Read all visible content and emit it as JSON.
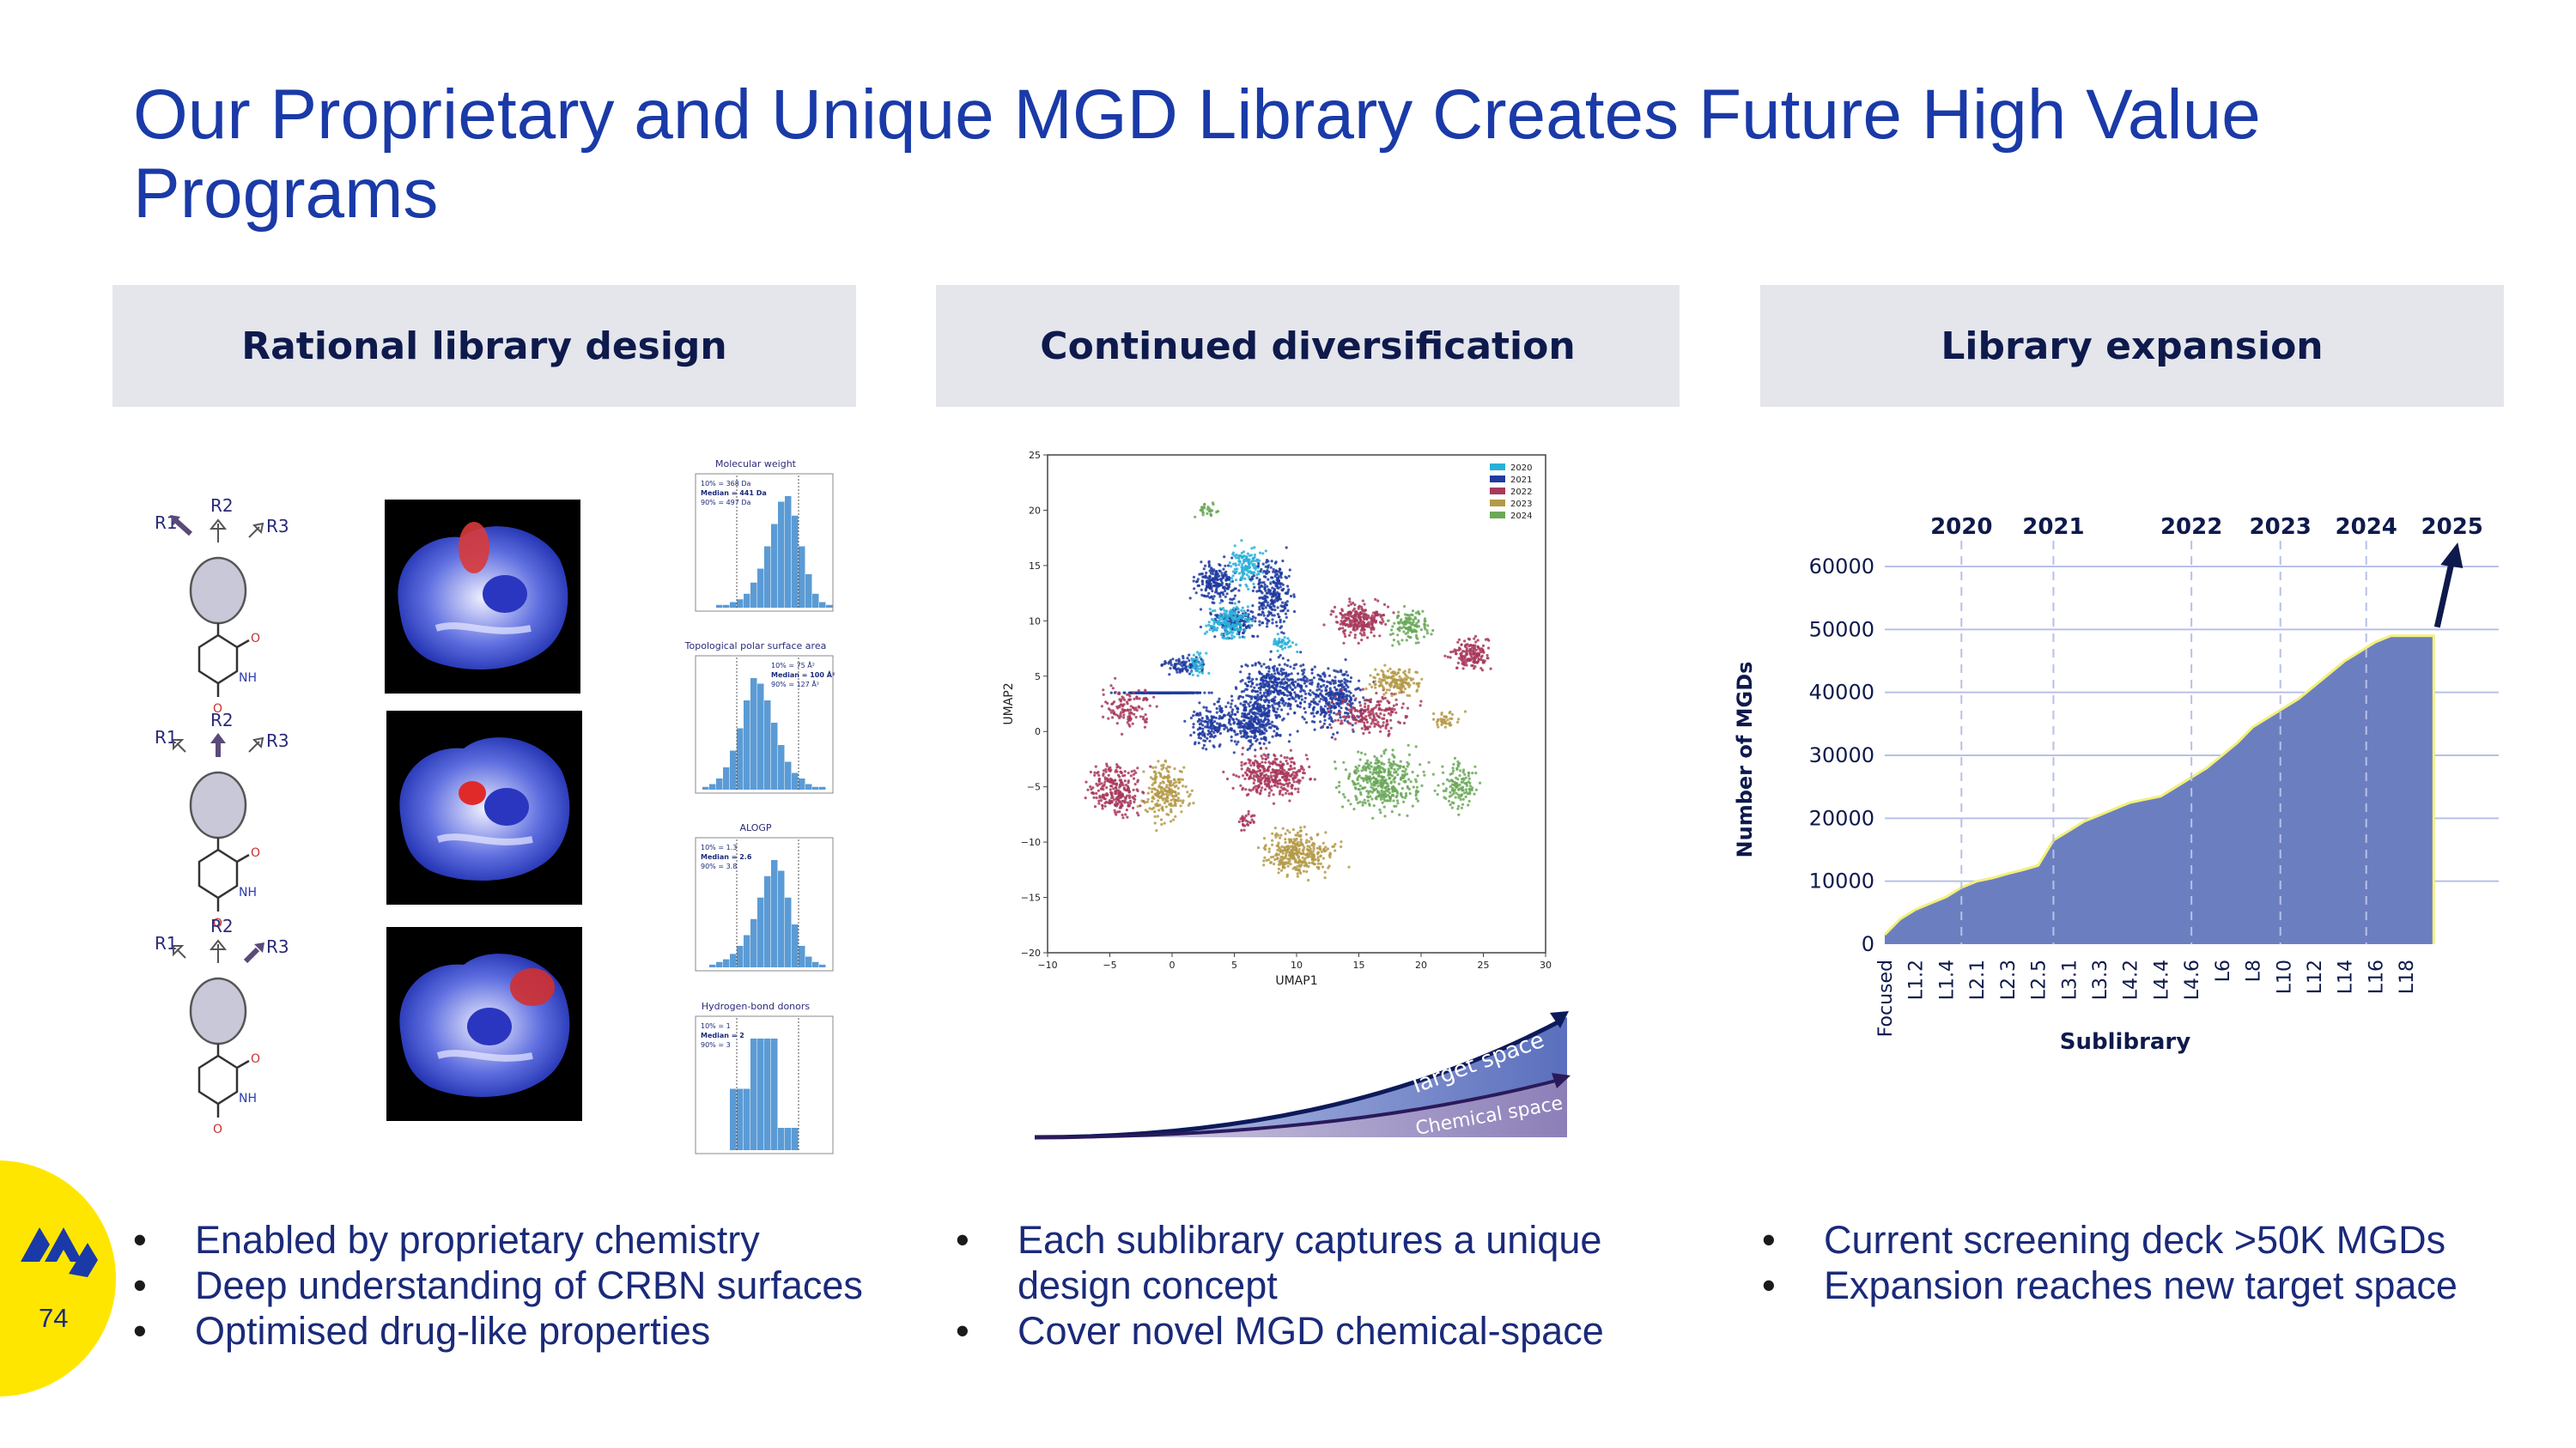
{
  "slide": {
    "title": "Our Proprietary and Unique MGD Library Creates Future High Value Programs",
    "page_number": "74"
  },
  "columns": [
    {
      "heading": "Rational library design",
      "bullets": [
        "Enabled by proprietary chemistry",
        "Deep understanding of CRBN surfaces",
        "Optimised drug-like properties"
      ]
    },
    {
      "heading": "Continued diversification",
      "bullets": [
        "Each sublibrary captures a unique design concept",
        "Cover novel MGD chemical-space"
      ]
    },
    {
      "heading": "Library expansion",
      "bullets": [
        "Current screening deck >50K MGDs",
        "Expansion reaches new target space"
      ]
    }
  ],
  "molecules": {
    "rows": [
      {
        "r1": "R1",
        "r2": "R2",
        "r3": "R3",
        "o1": "O",
        "nh": "NH",
        "o2": "O"
      },
      {
        "r1": "R1",
        "r2": "R2",
        "r3": "R3",
        "o1": "O",
        "nh": "NH",
        "o2": "O"
      },
      {
        "r1": "R1",
        "r2": "R2",
        "r3": "R3",
        "o1": "O",
        "nh": "NH",
        "o2": "O"
      }
    ]
  },
  "histograms": [
    {
      "title": "Molecular weight",
      "stats": [
        "10% = 368 Da",
        "Median = 441 Da",
        "90% = 497 Da"
      ]
    },
    {
      "title": "Topological polar surface area",
      "stats": [
        "10% = 75 Å²",
        "Median = 100 Å²",
        "90% = 127 Å²"
      ]
    },
    {
      "title": "ALOGP",
      "stats": [
        "10% = 1.3",
        "Median = 2.6",
        "90% = 3.8"
      ]
    },
    {
      "title": "Hydrogen-bond donors",
      "stats": [
        "10% = 1",
        "Median = 2",
        "90% = 3"
      ]
    }
  ],
  "umap": {
    "xlabel": "UMAP1",
    "ylabel": "UMAP2",
    "xticks": [
      "−10",
      "−5",
      "0",
      "5",
      "10",
      "15",
      "20",
      "25",
      "30"
    ],
    "yticks": [
      "25",
      "20",
      "15",
      "10",
      "5",
      "0",
      "−5",
      "−10",
      "−15",
      "−20"
    ],
    "legend": [
      {
        "label": "2020",
        "color": "#2ab0d8"
      },
      {
        "label": "2021",
        "color": "#1f3aa0"
      },
      {
        "label": "2022",
        "color": "#a8385c"
      },
      {
        "label": "2023",
        "color": "#b49a48"
      },
      {
        "label": "2024",
        "color": "#6aa858"
      }
    ]
  },
  "space_diagram": {
    "target_label": "Target space",
    "chemical_label": "Chemical space"
  },
  "chart_data": {
    "type": "area",
    "title": "",
    "xlabel": "Sublibrary",
    "ylabel": "Number of MGDs",
    "ylim": [
      0,
      60000
    ],
    "yticks": [
      "0",
      "10000",
      "20000",
      "30000",
      "40000",
      "50000",
      "60000"
    ],
    "categories": [
      "Focused",
      "L1.2",
      "L1.4",
      "L2.1",
      "L2.3",
      "L2.5",
      "L3.1",
      "L3.3",
      "L4.2",
      "L4.4",
      "L4.6",
      "L6",
      "L8",
      "L10",
      "L12",
      "L14",
      "L16",
      "L18"
    ],
    "x": [
      0,
      0.5,
      1,
      1.5,
      2,
      2.5,
      3,
      3.5,
      4,
      4.5,
      5,
      5.5,
      6,
      6.5,
      7,
      7.5,
      8,
      8.5,
      9,
      9.5,
      10,
      10.5,
      11,
      11.5,
      12,
      12.5,
      13,
      13.5,
      14,
      14.5,
      15,
      15.5,
      16,
      16.5,
      17,
      17.5,
      17.9
    ],
    "values": [
      1500,
      4000,
      5500,
      6500,
      7500,
      9000,
      10000,
      10500,
      11200,
      11800,
      12500,
      16500,
      18000,
      19500,
      20500,
      21500,
      22500,
      23000,
      23500,
      25000,
      26500,
      28000,
      30000,
      32000,
      34500,
      36000,
      37500,
      39000,
      41000,
      43000,
      45000,
      46500,
      48000,
      49000,
      49000,
      49000,
      49000
    ],
    "year_markers": [
      {
        "label": "2020",
        "x": 2.5
      },
      {
        "label": "2021",
        "x": 5.5
      },
      {
        "label": "2022",
        "x": 10.0
      },
      {
        "label": "2023",
        "x": 12.9
      },
      {
        "label": "2024",
        "x": 15.7
      },
      {
        "label": "2025",
        "x": 18.5
      }
    ],
    "series_color": "#6b7fc0"
  }
}
